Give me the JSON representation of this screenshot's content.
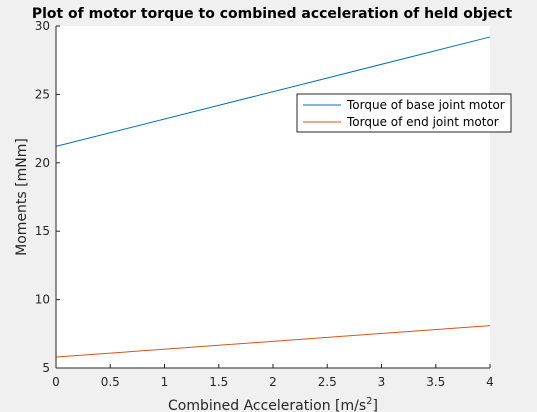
{
  "chart_data": {
    "type": "line",
    "title": "Plot of motor torque to combined acceleration of held object",
    "xlabel": "Combined Acceleration [m/s",
    "xlabel_superscript": "2",
    "xlabel_suffix": "]",
    "ylabel": "Moments [mNm]",
    "xlim": [
      0,
      4
    ],
    "ylim": [
      5,
      30
    ],
    "xticks": [
      0,
      0.5,
      1,
      1.5,
      2,
      2.5,
      3,
      3.5,
      4
    ],
    "xtick_labels": [
      "0",
      "0.5",
      "1",
      "1.5",
      "2",
      "2.5",
      "3",
      "3.5",
      "4"
    ],
    "yticks": [
      5,
      10,
      15,
      20,
      25,
      30
    ],
    "ytick_labels": [
      "5",
      "10",
      "15",
      "20",
      "25",
      "30"
    ],
    "grid": false,
    "legend_position": "top-right",
    "x": [
      0,
      4
    ],
    "series": [
      {
        "name": "Torque of base joint motor",
        "values": [
          21.2,
          29.2
        ],
        "color": "#0072bd"
      },
      {
        "name": "Torque of end joint motor",
        "values": [
          5.8,
          8.1
        ],
        "color": "#d95319"
      }
    ]
  }
}
